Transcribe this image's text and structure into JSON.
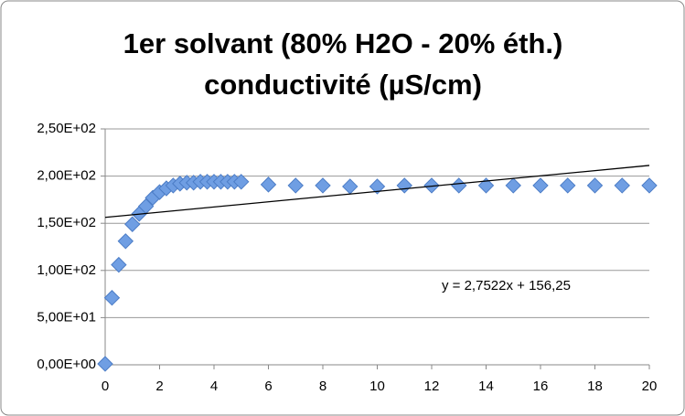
{
  "chart_data": {
    "type": "scatter",
    "title": [
      "1er solvant (80% H2O - 20% éth.)",
      "conductivité (µS/cm)"
    ],
    "x": [
      0,
      0.25,
      0.5,
      0.75,
      1,
      1.25,
      1.5,
      1.75,
      2,
      2.25,
      2.5,
      2.75,
      3,
      3.25,
      3.5,
      3.75,
      4,
      4.25,
      4.5,
      4.75,
      5,
      6,
      7,
      8,
      9,
      10,
      11,
      12,
      13,
      14,
      15,
      16,
      17,
      18,
      19,
      20
    ],
    "values": [
      1,
      71,
      106,
      131,
      149,
      160,
      168,
      177,
      183,
      187,
      190,
      192,
      193,
      193,
      194,
      194,
      194,
      194,
      194,
      194,
      194,
      191,
      190,
      190,
      189,
      189,
      190,
      190,
      190,
      190,
      190,
      190,
      190,
      190,
      190,
      190
    ],
    "color": "#6f9ee3",
    "trendline": {
      "slope": 2.7522,
      "intercept": 156.25,
      "label": "y = 2,7522x + 156,25",
      "color": "#000000"
    },
    "xlim": [
      0,
      20
    ],
    "xticks": [
      0,
      2,
      4,
      6,
      8,
      10,
      12,
      14,
      16,
      18,
      20
    ],
    "ylim": [
      0,
      250
    ],
    "yticks": [
      {
        "value": 0,
        "label": "0,00E+00"
      },
      {
        "value": 50,
        "label": "5,00E+01"
      },
      {
        "value": 100,
        "label": "1,00E+02"
      },
      {
        "value": 150,
        "label": "1,50E+02"
      },
      {
        "value": 200,
        "label": "2,00E+02"
      },
      {
        "value": 250,
        "label": "2,50E+02"
      }
    ],
    "grid": true
  }
}
